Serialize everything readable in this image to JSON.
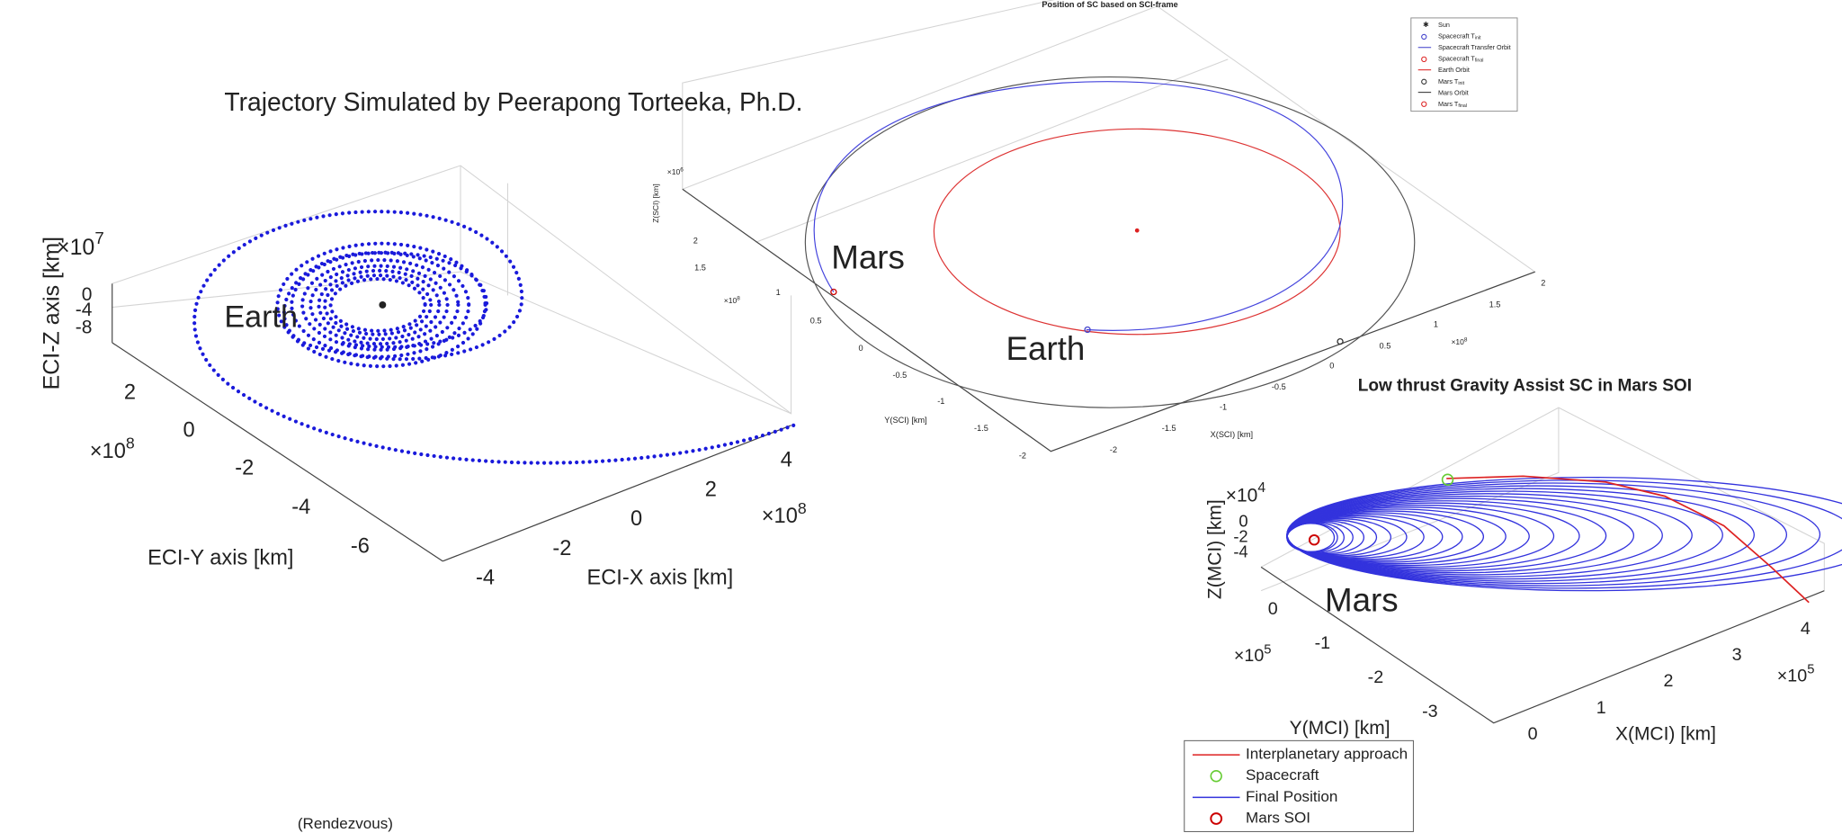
{
  "title": "Trajectory Simulated by Peerapong Torteeka, Ph.D.",
  "footer_fragment": "(Rendezvous)",
  "panels": [
    {
      "annotations": [
        "Earth"
      ],
      "axes": {
        "x": {
          "label": "ECI-X axis [km]",
          "ticks": [
            -4,
            -2,
            0,
            2,
            4
          ],
          "multiplier": {
            "base": "×10",
            "power": "8"
          }
        },
        "y": {
          "label": "ECI-Y axis [km]",
          "ticks": [
            2,
            0,
            -2,
            -4,
            -6
          ],
          "multiplier": {
            "base": "×10",
            "power": "8"
          }
        },
        "z": {
          "label": "ECI-Z axis [km]",
          "ticks": [
            0,
            -4,
            -8
          ],
          "multiplier": {
            "base": "×10",
            "power": "7"
          }
        }
      }
    },
    {
      "title": "Position of SC based on SCI-frame",
      "annotations": [
        "Mars",
        "Earth"
      ],
      "legend": [
        {
          "text": "Sun"
        },
        {
          "text": "Spacecraft T",
          "sub": "init"
        },
        {
          "text": "Spacecraft Transfer Orbit"
        },
        {
          "text": "Spacecraft T",
          "sub": "final"
        },
        {
          "text": "Earth Orbit"
        },
        {
          "text": "Mars T",
          "sub": "init"
        },
        {
          "text": "Mars Orbit"
        },
        {
          "text": "Mars T",
          "sub": "final"
        }
      ],
      "axes": {
        "x": {
          "label": "X(SCI) [km]",
          "ticks": [
            -2,
            -1.5,
            -1,
            -0.5,
            0,
            0.5,
            1,
            1.5,
            2
          ],
          "multiplier": {
            "base": "×10",
            "power": "8"
          }
        },
        "y": {
          "label": "Y(SCI) [km]",
          "ticks": [
            2,
            1.5,
            1,
            0.5,
            0,
            -0.5,
            -1,
            -1.5,
            -2
          ],
          "multiplier": {
            "base": "×10",
            "power": "8"
          }
        },
        "z": {
          "label": "Z(SCI) [km]",
          "multiplier": {
            "base": "×10",
            "power": "6"
          }
        }
      }
    },
    {
      "title": "Low thrust Gravity Assist SC in Mars SOI",
      "annotations": [
        "Mars"
      ],
      "legend": [
        {
          "text": "Interplanetary approach"
        },
        {
          "text": "Spacecraft"
        },
        {
          "text": "Final Position"
        },
        {
          "text": "Mars SOI"
        }
      ],
      "axes": {
        "x": {
          "label": "X(MCI) [km]",
          "ticks": [
            0,
            1,
            2,
            3,
            4
          ],
          "multiplier": {
            "base": "×10",
            "power": "5"
          }
        },
        "y": {
          "label": "Y(MCI) [km]",
          "ticks": [
            0,
            -1,
            -2,
            -3
          ],
          "multiplier": {
            "base": "×10",
            "power": "5"
          }
        },
        "z": {
          "label": "Z(MCI) [km]",
          "ticks": [
            0,
            -2,
            -4
          ],
          "multiplier": {
            "base": "×10",
            "power": "4"
          }
        }
      }
    }
  ]
}
